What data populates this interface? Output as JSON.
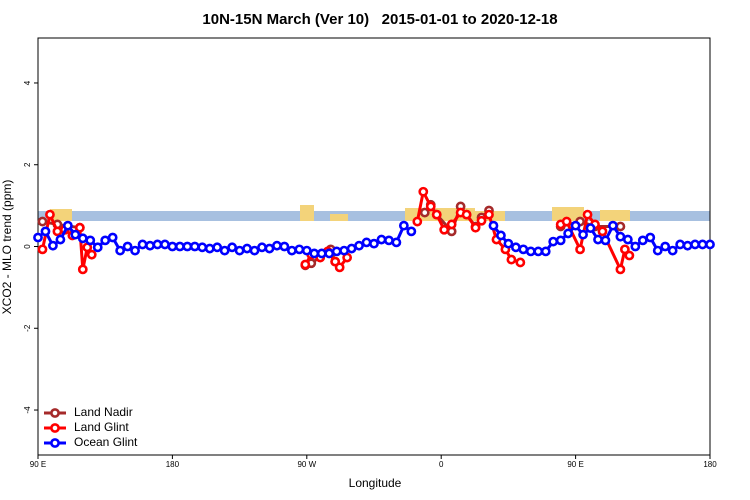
{
  "chart_data": {
    "type": "line",
    "title": "10N-15N March (Ver 10)   2015-01-01 to 2020-12-18",
    "xlabel": "Longitude",
    "ylabel": "XCO2 - MLO trend (ppm)",
    "xlim": [
      90,
      540
    ],
    "ylim": [
      -5.1,
      5.1
    ],
    "xticks": [
      {
        "value": 90,
        "label": "90 E"
      },
      180,
      {
        "value": 270,
        "label": "90 W"
      },
      {
        "value": 360,
        "label": "0"
      },
      {
        "value": 450,
        "label": "90 E"
      },
      {
        "value": 540,
        "label": "180"
      }
    ],
    "yticks": [
      -4,
      -2,
      0,
      2,
      4
    ],
    "legend": "bottom-left",
    "series": [
      {
        "name": "Land Nadir",
        "color": "#a52a2a",
        "x": [
          93,
          103,
          118,
          null,
          269,
          273,
          286,
          289,
          null,
          349,
          353,
          357,
          367,
          373,
          377,
          383,
          387,
          392,
          null,
          440,
          453,
          463,
          480
        ],
        "values": [
          0.61,
          0.54,
          0.46,
          null,
          -0.46,
          -0.41,
          -0.07,
          -0.37,
          null,
          0.83,
          1.02,
          0.78,
          0.37,
          0.98,
          0.78,
          0.49,
          0.71,
          0.88,
          null,
          0.49,
          0.61,
          0.49,
          0.49
        ]
      },
      {
        "name": "Land Glint",
        "color": "#ff0000",
        "x": [
          93,
          98,
          103,
          108,
          113,
          118,
          120,
          123,
          126,
          null,
          269,
          273,
          279,
          284,
          289,
          292,
          297,
          null,
          344,
          348,
          353,
          357,
          362,
          367,
          373,
          377,
          383,
          387,
          392,
          397,
          403,
          407,
          413,
          null,
          440,
          444,
          453,
          458,
          463,
          468,
          480,
          483,
          486
        ],
        "values": [
          -0.07,
          0.78,
          0.37,
          0.41,
          0.27,
          0.46,
          -0.56,
          -0.02,
          -0.2,
          null,
          -0.44,
          -0.2,
          -0.27,
          -0.12,
          -0.37,
          -0.51,
          -0.27,
          null,
          0.61,
          1.34,
          0.98,
          0.78,
          0.41,
          0.54,
          0.83,
          0.78,
          0.46,
          0.63,
          0.78,
          0.17,
          -0.07,
          -0.32,
          -0.39,
          null,
          0.54,
          0.61,
          -0.07,
          0.78,
          0.54,
          0.37,
          -0.56,
          -0.07,
          -0.22
        ]
      },
      {
        "name": "Ocean Glint",
        "color": "#0000ff",
        "x": [
          90,
          95,
          100,
          105,
          110,
          115,
          120,
          125,
          130,
          135,
          140,
          145,
          150,
          155,
          160,
          165,
          170,
          175,
          180,
          185,
          190,
          195,
          200,
          205,
          210,
          215,
          220,
          225,
          230,
          235,
          240,
          245,
          250,
          255,
          260,
          265,
          270,
          275,
          280,
          285,
          290,
          295,
          300,
          305,
          310,
          315,
          320,
          325,
          330,
          335,
          340,
          345,
          350,
          355,
          360,
          365,
          370,
          375,
          380,
          385,
          390,
          395,
          400,
          405,
          410,
          415,
          420,
          425,
          430,
          435,
          440,
          445,
          450,
          455,
          460,
          465,
          470,
          475,
          480,
          485,
          490,
          495,
          500,
          505,
          510,
          515,
          520,
          525,
          530,
          535,
          540
        ],
        "values": [
          0.22,
          0.37,
          0.02,
          0.17,
          0.51,
          0.29,
          0.2,
          0.15,
          -0.02,
          0.15,
          0.22,
          -0.1,
          0,
          -0.1,
          0.05,
          0.02,
          0.05,
          0.05,
          0,
          0,
          0,
          0,
          -0.02,
          -0.05,
          -0.02,
          -0.1,
          -0.02,
          -0.1,
          -0.05,
          -0.1,
          -0.02,
          -0.05,
          0.02,
          0,
          -0.1,
          -0.07,
          -0.1,
          -0.17,
          -0.17,
          -0.17,
          -0.12,
          -0.1,
          -0.05,
          0.02,
          0.1,
          0.07,
          0.17,
          0.15,
          0.1,
          0.51,
          0.37,
          null,
          null,
          null,
          null,
          null,
          null,
          null,
          null,
          null,
          null,
          0.51,
          0.27,
          0.07,
          -0.02,
          -0.07,
          -0.12,
          -0.12,
          -0.12,
          0.12,
          0.15,
          0.32,
          0.51,
          0.29,
          0.45,
          0.17,
          0.15,
          0.51,
          0.24,
          0.17,
          0,
          0.15,
          0.22,
          -0.1,
          0,
          -0.1,
          0.05,
          0.02,
          0.05,
          0.05,
          0.05
        ]
      }
    ]
  }
}
